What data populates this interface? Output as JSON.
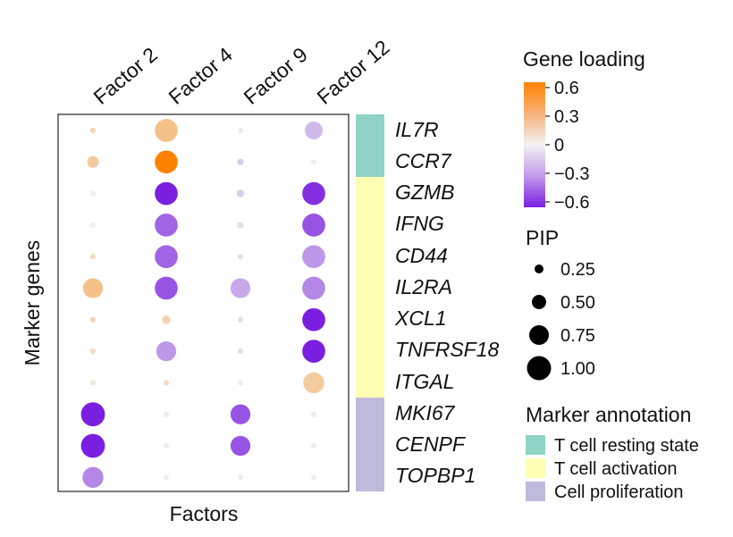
{
  "chart_data": {
    "type": "dotplot",
    "xlabel": "Factors",
    "ylabel": "Marker genes",
    "factors": [
      "Factor 2",
      "Factor 4",
      "Factor 9",
      "Factor 12"
    ],
    "genes": [
      "IL7R",
      "CCR7",
      "GZMB",
      "IFNG",
      "CD44",
      "IL2RA",
      "XCL1",
      "TNFRSF18",
      "ITGAL",
      "MKI67",
      "CENPF",
      "TOPBP1"
    ],
    "gene_annotation": [
      "T cell resting state",
      "T cell resting state",
      "T cell activation",
      "T cell activation",
      "T cell activation",
      "T cell activation",
      "T cell activation",
      "T cell activation",
      "T cell activation",
      "Cell proliferation",
      "Cell proliferation",
      "Cell proliferation"
    ],
    "loading": [
      [
        0.15,
        0.25,
        0.0,
        -0.15
      ],
      [
        0.2,
        0.6,
        -0.1,
        0.0
      ],
      [
        0.0,
        -0.6,
        -0.1,
        -0.55
      ],
      [
        0.0,
        -0.4,
        -0.05,
        -0.45
      ],
      [
        0.1,
        -0.4,
        -0.05,
        -0.25
      ],
      [
        0.25,
        -0.45,
        -0.2,
        -0.3
      ],
      [
        0.15,
        0.15,
        -0.05,
        -0.65
      ],
      [
        0.1,
        -0.25,
        -0.05,
        -0.65
      ],
      [
        0.05,
        0.1,
        0.0,
        0.2
      ],
      [
        -0.6,
        0.0,
        -0.45,
        0.0
      ],
      [
        -0.6,
        0.0,
        -0.45,
        0.0
      ],
      [
        -0.3,
        0.0,
        0.0,
        0.0
      ]
    ],
    "pip": [
      [
        0.05,
        0.9,
        0.05,
        0.65
      ],
      [
        0.35,
        0.9,
        0.1,
        0.05
      ],
      [
        0.05,
        0.9,
        0.15,
        0.9
      ],
      [
        0.05,
        0.9,
        0.1,
        0.9
      ],
      [
        0.05,
        0.9,
        0.05,
        0.9
      ],
      [
        0.75,
        0.9,
        0.75,
        0.9
      ],
      [
        0.05,
        0.2,
        0.05,
        0.9
      ],
      [
        0.05,
        0.75,
        0.05,
        0.9
      ],
      [
        0.05,
        0.05,
        0.05,
        0.8
      ],
      [
        0.95,
        0.05,
        0.75,
        0.05
      ],
      [
        0.95,
        0.05,
        0.75,
        0.05
      ],
      [
        0.8,
        0.05,
        0.05,
        0.05
      ]
    ],
    "color_legend": {
      "title": "Gene loading",
      "ticks": [
        0.6,
        0.3,
        0,
        -0.3,
        -0.6
      ],
      "tick_labels": [
        "0.6",
        "0.3",
        "0",
        "−0.3",
        "−0.6"
      ]
    },
    "size_legend": {
      "title": "PIP",
      "values": [
        0.25,
        0.5,
        0.75,
        1.0
      ],
      "labels": [
        "0.25",
        "0.50",
        "0.75",
        "1.00"
      ]
    },
    "annotation_legend": {
      "title": "Marker annotation",
      "items": [
        {
          "label": "T cell resting state",
          "color": "#8fd3c7"
        },
        {
          "label": "T cell activation",
          "color": "#ffffb3"
        },
        {
          "label": "Cell proliferation",
          "color": "#bebadb"
        }
      ]
    },
    "colors": {
      "high": "#ff8200",
      "zero": "#eeeeee",
      "low": "#7a1fe0"
    }
  }
}
